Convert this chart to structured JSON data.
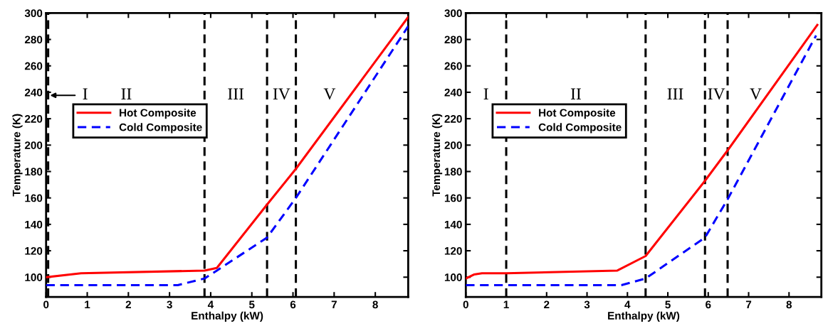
{
  "chart_data": [
    {
      "type": "line",
      "xlabel": "Enthalpy (kW)",
      "ylabel": "Temperature (K)",
      "xlim": [
        0,
        8.8
      ],
      "ylim": [
        85,
        300
      ],
      "xticks": [
        0,
        1,
        2,
        3,
        4,
        5,
        6,
        7,
        8
      ],
      "yticks": [
        100,
        120,
        140,
        160,
        180,
        200,
        220,
        240,
        260,
        280,
        300
      ],
      "grid": false,
      "legend": "left",
      "marker": "none",
      "series": [
        {
          "name": "Hot Composite",
          "color": "#ff0000",
          "line_style": "solid",
          "x": [
            0,
            0.85,
            3.85,
            4.15,
            5.37,
            6.07,
            8.8
          ],
          "values": [
            100,
            103,
            105,
            107,
            155,
            182,
            297
          ]
        },
        {
          "name": "Cold Composite",
          "color": "#0000ff",
          "line_style": "dashed",
          "x": [
            0,
            3.2,
            3.85,
            4.15,
            5.37,
            6.07,
            8.8
          ],
          "values": [
            94,
            94,
            99,
            105,
            130,
            160,
            290
          ]
        }
      ],
      "ref_lines": [
        {
          "axis": "x",
          "value": 0.05,
          "color": "#000000",
          "line_style": "dashed"
        },
        {
          "axis": "x",
          "value": 3.85,
          "color": "#000000",
          "line_style": "dashed"
        },
        {
          "axis": "x",
          "value": 5.37,
          "color": "#000000",
          "line_style": "dashed"
        },
        {
          "axis": "x",
          "value": 6.07,
          "color": "#000000",
          "line_style": "dashed"
        }
      ],
      "annotations": [
        "I",
        "II",
        "III",
        "IV",
        "V"
      ]
    },
    {
      "type": "line",
      "xlabel": "Enthalpy (kW)",
      "ylabel": "Temperature (K)",
      "xlim": [
        0,
        8.8
      ],
      "ylim": [
        85,
        300
      ],
      "xticks": [
        0,
        1,
        2,
        3,
        4,
        5,
        6,
        7,
        8
      ],
      "yticks": [
        100,
        120,
        140,
        160,
        180,
        200,
        220,
        240,
        260,
        280,
        300
      ],
      "grid": false,
      "legend": "left",
      "marker": "none",
      "series": [
        {
          "name": "Hot Composite",
          "color": "#ff0000",
          "line_style": "solid",
          "x": [
            0,
            0.2,
            0.4,
            1,
            3.75,
            4.45,
            5.92,
            6.48,
            8.7
          ],
          "values": [
            99,
            102,
            103,
            103,
            105,
            116,
            173,
            196,
            291
          ]
        },
        {
          "name": "Cold Composite",
          "color": "#0000ff",
          "line_style": "dashed",
          "x": [
            0,
            3.85,
            4.45,
            5.92,
            6.48,
            8.67
          ],
          "values": [
            94,
            94,
            99,
            130,
            159,
            283
          ]
        }
      ],
      "ref_lines": [
        {
          "axis": "x",
          "value": 1.0,
          "color": "#000000",
          "line_style": "dashed"
        },
        {
          "axis": "x",
          "value": 4.45,
          "color": "#000000",
          "line_style": "dashed"
        },
        {
          "axis": "x",
          "value": 5.92,
          "color": "#000000",
          "line_style": "dashed"
        },
        {
          "axis": "x",
          "value": 6.48,
          "color": "#000000",
          "line_style": "dashed"
        }
      ],
      "annotations": [
        "I",
        "II",
        "III",
        "IV",
        "V"
      ]
    }
  ]
}
